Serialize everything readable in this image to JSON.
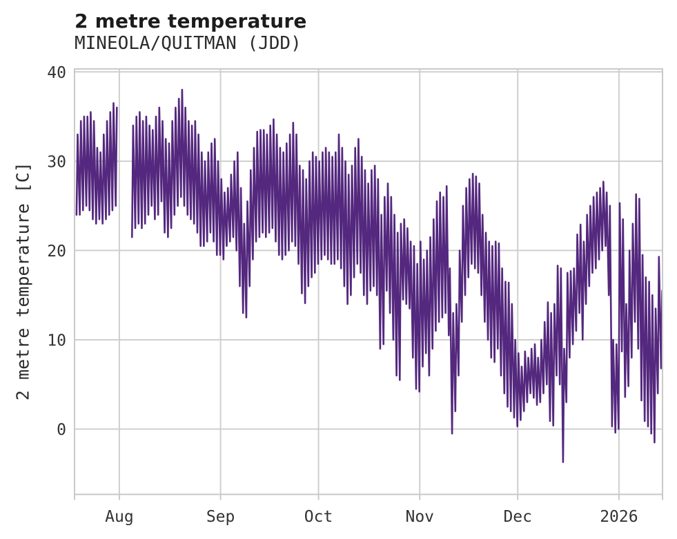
{
  "chart": {
    "title": "2 metre temperature",
    "subtitle": "MINEOLA/QUITMAN (JDD)",
    "ylabel": "2 metre temperature [C]"
  },
  "colors": {
    "line": "#54287e",
    "grid": "#cfcfcf",
    "frame": "#c9c9c9",
    "tick_text": "#333333",
    "title_text": "#1c1c1c",
    "background": "#ffffff"
  },
  "chart_data": {
    "type": "line",
    "title": "2 metre temperature",
    "subtitle": "MINEOLA/QUITMAN (JDD)",
    "xlabel": "",
    "ylabel": "2 metre temperature [C]",
    "legend": "none",
    "grid": "on",
    "x_axis_kind": "time-daily",
    "start_date": "2025-07-19",
    "end_date": "2026-01-14",
    "data_gap": {
      "from": "2025-08-01",
      "to": "2025-08-04"
    },
    "ylim": [
      -7.3,
      40.3
    ],
    "y_ticks": [
      0,
      10,
      20,
      30,
      40
    ],
    "x_ticks": [
      {
        "label": "Aug",
        "day_offset": 13
      },
      {
        "label": "Sep",
        "day_offset": 44
      },
      {
        "label": "Oct",
        "day_offset": 74
      },
      {
        "label": "Nov",
        "day_offset": 105
      },
      {
        "label": "Dec",
        "day_offset": 135
      },
      {
        "label": "2026",
        "day_offset": 166
      }
    ],
    "total_days_span": 181,
    "series_name": "2 metre temperature [C]",
    "min_phase_frac": 0.29,
    "max_phase_frac": 0.63,
    "daily_max": [
      33,
      34.5,
      35,
      35,
      35.5,
      34.5,
      31.5,
      31,
      33,
      34.5,
      35.5,
      36.5,
      36,
      null,
      null,
      null,
      null,
      34,
      35,
      35.5,
      34.5,
      35,
      34,
      33.5,
      35,
      36,
      34.5,
      32.5,
      32,
      34.5,
      36,
      37,
      38,
      36,
      34.5,
      34,
      34.5,
      33,
      31,
      30,
      31,
      32,
      32.5,
      30,
      28,
      26.5,
      27,
      28.5,
      30,
      31,
      27,
      23,
      25.5,
      29,
      31.5,
      33.3,
      33.5,
      33.5,
      33,
      34,
      34.7,
      33,
      31.5,
      31,
      32,
      33,
      34.3,
      33,
      29.5,
      29,
      28,
      30,
      31,
      30.5,
      30,
      31,
      31.5,
      31,
      30.5,
      31,
      33,
      31.5,
      30,
      28.5,
      29.5,
      31.5,
      32.5,
      30.5,
      29,
      27.5,
      29,
      29.5,
      28,
      24,
      26,
      27.5,
      26,
      24,
      22,
      23,
      23.5,
      22.5,
      21,
      20.5,
      18.5,
      21,
      19,
      20,
      21.5,
      23.5,
      25.5,
      26.5,
      26,
      27.2,
      18,
      13,
      14,
      20,
      25,
      27,
      28,
      28.6,
      28.3,
      27.5,
      24,
      22,
      21,
      20.5,
      21,
      20.8,
      18,
      16.5,
      16.4,
      14,
      10,
      8.5,
      7,
      8.7,
      8,
      9,
      9.5,
      8,
      10,
      12,
      14.2,
      13,
      14,
      18.3,
      18,
      9,
      17.5,
      17.7,
      18,
      21.8,
      22.9,
      21,
      24,
      25,
      26,
      26.5,
      27,
      27.7,
      26.5,
      25,
      10,
      9.5,
      25.3,
      23.5,
      14,
      20,
      23,
      26.3,
      25.8,
      19.5,
      17,
      16.5,
      15,
      13.5,
      19.3,
      15.5
    ],
    "daily_min": [
      24,
      24,
      24.5,
      25,
      24.5,
      23.5,
      23,
      23.5,
      23,
      23.5,
      24,
      24.5,
      25,
      null,
      null,
      null,
      null,
      21.5,
      22.5,
      23,
      22.5,
      23,
      24,
      25,
      23.5,
      24,
      25.5,
      22,
      21.5,
      22.5,
      24,
      25,
      26,
      25,
      24,
      23.5,
      23,
      22,
      20.5,
      20.5,
      21,
      22,
      21,
      19.5,
      19.5,
      19,
      20.5,
      21,
      21.5,
      20,
      16,
      13,
      12.5,
      16,
      19,
      21,
      21.5,
      22,
      21.5,
      22,
      22.5,
      21,
      19.5,
      19,
      19.5,
      20,
      21,
      20.5,
      18.5,
      15.2,
      14.1,
      16,
      17,
      17.5,
      18.5,
      19,
      19.5,
      19,
      18.5,
      18.5,
      19,
      18,
      16,
      14,
      15,
      17,
      18.5,
      17.5,
      15,
      14,
      15.5,
      16,
      15,
      9,
      9.5,
      15.5,
      13,
      10,
      6,
      5.5,
      14.5,
      14,
      13.5,
      8,
      4.5,
      4.2,
      7,
      8.5,
      6,
      9,
      11,
      12,
      12.5,
      13,
      10.5,
      -0.5,
      2,
      6,
      12,
      15,
      17,
      18.5,
      18,
      17.5,
      15,
      12,
      10,
      8,
      7.5,
      9,
      6,
      4,
      2.5,
      2,
      1.3,
      0.3,
      1,
      2,
      3,
      4,
      3.5,
      2.7,
      3,
      4,
      5,
      0.9,
      0.4,
      6,
      5,
      -3.7,
      3,
      8,
      9.5,
      11,
      13,
      10,
      14,
      16,
      17.5,
      18,
      19,
      20,
      20.5,
      15,
      0.3,
      -0.4,
      0,
      8.7,
      3.6,
      4.8,
      8,
      12,
      9,
      3.2,
      0.9,
      0.3,
      -0.5,
      -1.5,
      4,
      6.8
    ]
  }
}
